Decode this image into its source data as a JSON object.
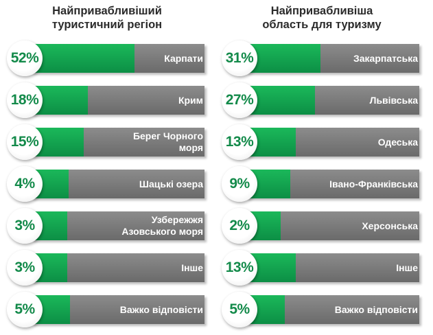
{
  "chart_data": [
    {
      "type": "bar",
      "title": "Найпривабливіший\nтуристичний регіон",
      "categories": [
        "Карпати",
        "Крим",
        "Берег Чорного моря",
        "Шацькі озера",
        "Узбережжя Азовського моря",
        "Інше",
        "Важко відповісти"
      ],
      "display_categories": [
        "Карпати",
        "Крим",
        "Берег Чорного\nморя",
        "Шацькі озера",
        "Узбережжя\nАзовського моря",
        "Інше",
        "Важко відповісти"
      ],
      "values": [
        52,
        18,
        15,
        4,
        3,
        3,
        5
      ],
      "value_labels": [
        "52%",
        "18%",
        "15%",
        "4%",
        "3%",
        "3%",
        "5%"
      ],
      "unit": "%"
    },
    {
      "type": "bar",
      "title": "Найпривабливіша\nобласть для туризму",
      "categories": [
        "Закарпатська",
        "Львівська",
        "Одеська",
        "Івано-Франківська",
        "Херсонська",
        "Інше",
        "Важко відповісти"
      ],
      "display_categories": [
        "Закарпатська",
        "Львівська",
        "Одеська",
        "Івано-Франківська",
        "Херсонська",
        "Інше",
        "Важко відповісти"
      ],
      "values": [
        31,
        27,
        13,
        9,
        2,
        13,
        5
      ],
      "value_labels": [
        "31%",
        "27%",
        "13%",
        "9%",
        "2%",
        "13%",
        "5%"
      ],
      "unit": "%"
    }
  ],
  "colors": {
    "accent": "#0f9d4f",
    "bar": "#7a7a7a",
    "value_text": "#138a4a"
  }
}
